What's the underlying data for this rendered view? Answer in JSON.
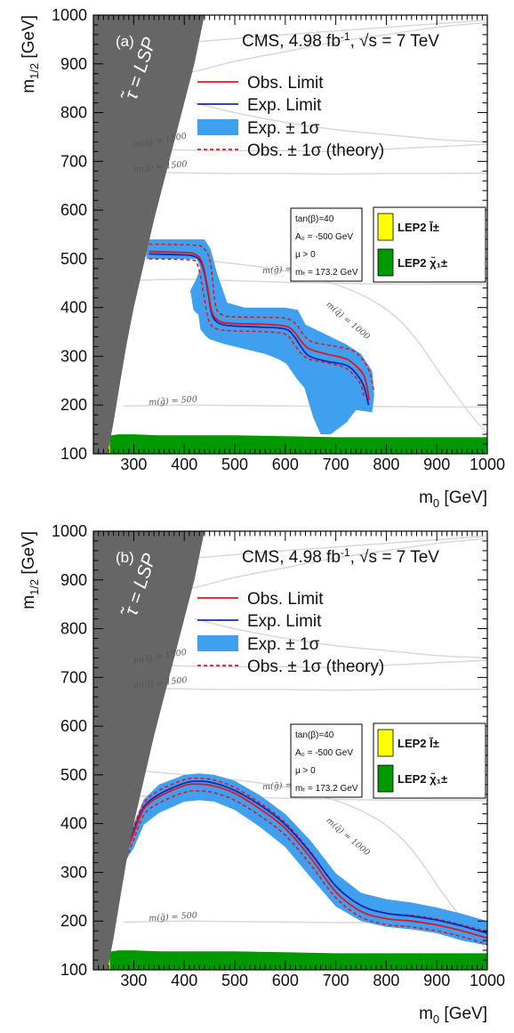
{
  "chart_data": [
    {
      "type": "line",
      "panel_label": "(a)",
      "ylabel_main": "m",
      "ylabel_sub": "1/2",
      "ylabel_unit": "[GeV]",
      "xlabel_main": "m",
      "xlabel_sub": "0",
      "xlabel_unit": "[GeV]",
      "xlim": [
        220,
        1000
      ],
      "ylim": [
        100,
        1000
      ],
      "x_ticks": [
        "300",
        "400",
        "500",
        "600",
        "700",
        "800",
        "900",
        "1000"
      ],
      "y_ticks": [
        "100",
        "200",
        "300",
        "400",
        "500",
        "600",
        "700",
        "800",
        "900",
        "1000"
      ],
      "experiment": "CMS, 4.98 fb",
      "lumi_sup": "-1",
      "energy_sqrt": "√s",
      "energy": "= 7 TeV",
      "excluded_region_label": "τ̃ = LSP",
      "legend": [
        "Obs. Limit",
        "Exp. Limit",
        "Exp. ± 1σ",
        "Obs. ± 1σ (theory)"
      ],
      "params": [
        "tan(β)=40",
        "A₀ = -500 GeV",
        "μ > 0",
        "mₜ = 173.2 GeV"
      ],
      "lep_labels": [
        "LEP2 l̃±",
        "LEP2 χ̃₁±"
      ],
      "contour_labels": [
        "m(q̃) = 1500",
        "m(g̃) = 1500",
        "m(g̃) = 1000",
        "m(q̃) = 1000",
        "m(g̃) = 500"
      ],
      "colors": {
        "obs": "#e8141c",
        "exp": "#1428b4",
        "band": "#3fa0f0",
        "stau": "#666666",
        "lep_slepton": "#ffff00",
        "lep_chargino": "#009900",
        "contour": "#d8d8d8"
      },
      "stau_boundary": [
        [
          220,
          1000
        ],
        [
          220,
          100
        ],
        [
          248,
          100
        ],
        [
          260,
          165
        ],
        [
          272,
          240
        ],
        [
          285,
          320
        ],
        [
          300,
          400
        ],
        [
          320,
          490
        ],
        [
          340,
          580
        ],
        [
          360,
          660
        ],
        [
          380,
          740
        ],
        [
          400,
          820
        ],
        [
          420,
          900
        ],
        [
          440,
          1000
        ]
      ],
      "lep_slepton": [
        [
          220,
          100
        ],
        [
          220,
          115
        ],
        [
          228,
          130
        ],
        [
          238,
          160
        ],
        [
          245,
          190
        ],
        [
          250,
          200
        ],
        [
          253,
          100
        ]
      ],
      "lep_chargino": [
        [
          232,
          100
        ],
        [
          235,
          128
        ],
        [
          250,
          137
        ],
        [
          270,
          140
        ],
        [
          300,
          140
        ],
        [
          350,
          138
        ],
        [
          500,
          138
        ],
        [
          600,
          136
        ],
        [
          700,
          134
        ],
        [
          800,
          134
        ],
        [
          1000,
          134
        ],
        [
          1000,
          100
        ]
      ],
      "obs_limit": {
        "x": [
          330,
          400,
          420,
          432,
          440,
          448,
          455,
          470,
          500,
          550,
          600,
          618,
          632,
          648,
          680,
          720,
          740,
          755,
          762,
          766
        ],
        "y": [
          515,
          513,
          510,
          500,
          475,
          430,
          390,
          372,
          367,
          366,
          362,
          350,
          330,
          315,
          305,
          295,
          280,
          262,
          235,
          210
        ]
      },
      "exp_limit": {
        "x": [
          330,
          400,
          420,
          432,
          440,
          448,
          455,
          470,
          500,
          550,
          600,
          618,
          632,
          648,
          680,
          720,
          740,
          755,
          765
        ],
        "y": [
          510,
          508,
          505,
          495,
          470,
          425,
          385,
          367,
          362,
          360,
          356,
          340,
          318,
          300,
          290,
          282,
          265,
          240,
          200
        ]
      },
      "obs_theory_up": {
        "x": [
          330,
          420,
          440,
          452,
          462,
          475,
          500,
          550,
          600,
          620,
          636,
          652,
          690,
          730,
          752,
          768,
          775
        ],
        "y": [
          530,
          528,
          520,
          490,
          405,
          385,
          381,
          380,
          378,
          367,
          345,
          330,
          322,
          313,
          295,
          265,
          230
        ]
      },
      "obs_theory_down": {
        "x": [
          330,
          410,
          424,
          432,
          440,
          448,
          462,
          500,
          550,
          598,
          614,
          628,
          645,
          675,
          715,
          735,
          750,
          756
        ],
        "y": [
          500,
          498,
          492,
          465,
          418,
          375,
          357,
          352,
          351,
          346,
          330,
          310,
          295,
          288,
          278,
          262,
          240,
          215
        ]
      },
      "exp_band": {
        "x": [
          325,
          440,
          452,
          465,
          485,
          520,
          600,
          625,
          640,
          680,
          720,
          750,
          772,
          776,
          772,
          740,
          722,
          690,
          670,
          655,
          638,
          622,
          612,
          602,
          585,
          560,
          520,
          480,
          450,
          442,
          432,
          428,
          418,
          412,
          422,
          432,
          425,
          410,
          325
        ],
        "y": [
          540,
          540,
          520,
          470,
          410,
          400,
          400,
          395,
          365,
          345,
          325,
          305,
          270,
          220,
          185,
          190,
          165,
          140,
          140,
          175,
          235,
          255,
          270,
          285,
          295,
          305,
          315,
          325,
          335,
          342,
          355,
          385,
          395,
          435,
          455,
          480,
          500,
          500,
          500
        ]
      },
      "contours": [
        {
          "x": [
            300,
            400,
            500,
            600,
            700,
            800,
            900,
            1000
          ],
          "y": [
            870,
            880,
            905,
            925,
            945,
            960,
            975,
            985
          ]
        },
        {
          "x": [
            420,
            600,
            800,
            1000
          ],
          "y": [
            945,
            960,
            975,
            990
          ]
        },
        {
          "x": [
            300,
            420,
            500,
            600,
            700,
            800,
            900,
            1000
          ],
          "y": [
            725,
            723,
            722,
            722,
            720,
            725,
            730,
            735
          ]
        },
        {
          "x": [
            300,
            420,
            500,
            600,
            700,
            800,
            900,
            1000
          ],
          "y": [
            678,
            676,
            675,
            675,
            674,
            675,
            675,
            676
          ]
        },
        {
          "x": [
            280,
            400,
            500,
            600,
            700,
            800,
            900,
            1000
          ],
          "y": [
            455,
            458,
            455,
            452,
            450,
            448,
            448,
            448
          ]
        },
        {
          "x": [
            300,
            400,
            500,
            600,
            660,
            720,
            780,
            830,
            870,
            910,
            960,
            1000
          ],
          "y": [
            510,
            500,
            490,
            475,
            460,
            440,
            410,
            370,
            320,
            260,
            190,
            140
          ]
        },
        {
          "x": [
            280,
            400,
            500,
            600,
            700,
            800,
            900,
            1000
          ],
          "y": [
            198,
            200,
            199,
            198,
            197,
            197,
            196,
            196
          ]
        },
        {
          "x": [
            420,
            500,
            600,
            700,
            800,
            900,
            1000
          ],
          "y": [
            820,
            800,
            780,
            765,
            755,
            745,
            740
          ]
        }
      ]
    },
    {
      "type": "line",
      "panel_label": "(b)",
      "ylabel_main": "m",
      "ylabel_sub": "1/2",
      "ylabel_unit": "[GeV]",
      "xlabel_main": "m",
      "xlabel_sub": "0",
      "xlabel_unit": "[GeV]",
      "xlim": [
        220,
        1000
      ],
      "ylim": [
        100,
        1000
      ],
      "x_ticks": [
        "300",
        "400",
        "500",
        "600",
        "700",
        "800",
        "900",
        "1000"
      ],
      "y_ticks": [
        "100",
        "200",
        "300",
        "400",
        "500",
        "600",
        "700",
        "800",
        "900",
        "1000"
      ],
      "experiment": "CMS, 4.98 fb",
      "lumi_sup": "-1",
      "energy_sqrt": "√s",
      "energy": "= 7 TeV",
      "excluded_region_label": "τ̃ = LSP",
      "legend": [
        "Obs. Limit",
        "Exp. Limit",
        "Exp. ± 1σ",
        "Obs. ± 1σ (theory)"
      ],
      "params": [
        "tan(β)=40",
        "A₀ = -500 GeV",
        "μ > 0",
        "mₜ = 173.2 GeV"
      ],
      "lep_labels": [
        "LEP2 l̃±",
        "LEP2 χ̃₁±"
      ],
      "contour_labels": [
        "m(q̃) = 1500",
        "m(g̃) = 1500",
        "m(g̃) = 1000",
        "m(q̃) = 1000",
        "m(g̃) = 500"
      ],
      "colors": {
        "obs": "#e8141c",
        "exp": "#1428b4",
        "band": "#3fa0f0",
        "stau": "#666666",
        "lep_slepton": "#ffff00",
        "lep_chargino": "#009900",
        "contour": "#d8d8d8"
      },
      "stau_boundary": [
        [
          220,
          1000
        ],
        [
          220,
          100
        ],
        [
          248,
          100
        ],
        [
          260,
          165
        ],
        [
          272,
          240
        ],
        [
          285,
          320
        ],
        [
          300,
          400
        ],
        [
          320,
          490
        ],
        [
          340,
          580
        ],
        [
          360,
          660
        ],
        [
          380,
          740
        ],
        [
          400,
          820
        ],
        [
          420,
          900
        ],
        [
          440,
          1000
        ]
      ],
      "lep_slepton": [
        [
          220,
          100
        ],
        [
          220,
          115
        ],
        [
          228,
          130
        ],
        [
          238,
          160
        ],
        [
          245,
          190
        ],
        [
          250,
          200
        ],
        [
          253,
          100
        ]
      ],
      "lep_chargino": [
        [
          232,
          100
        ],
        [
          235,
          128
        ],
        [
          250,
          137
        ],
        [
          270,
          140
        ],
        [
          300,
          140
        ],
        [
          350,
          138
        ],
        [
          500,
          138
        ],
        [
          600,
          136
        ],
        [
          700,
          134
        ],
        [
          800,
          134
        ],
        [
          1000,
          134
        ],
        [
          1000,
          100
        ]
      ],
      "obs_limit": {
        "x": [
          285,
          300,
          320,
          350,
          400,
          430,
          460,
          500,
          550,
          600,
          650,
          700,
          750,
          800,
          850,
          900,
          950,
          1000
        ],
        "y": [
          340,
          380,
          430,
          455,
          478,
          481,
          477,
          462,
          430,
          390,
          330,
          260,
          220,
          205,
          200,
          192,
          180,
          165
        ]
      },
      "exp_limit": {
        "x": [
          285,
          300,
          320,
          350,
          400,
          430,
          460,
          500,
          550,
          600,
          650,
          700,
          750,
          800,
          850,
          900,
          950,
          1000
        ],
        "y": [
          345,
          385,
          434,
          460,
          483,
          487,
          483,
          468,
          438,
          398,
          340,
          272,
          232,
          216,
          210,
          202,
          190,
          175
        ]
      },
      "obs_theory_up": {
        "x": [
          285,
          300,
          320,
          350,
          400,
          430,
          460,
          500,
          550,
          600,
          650,
          700,
          750,
          800,
          850,
          900,
          950,
          1000
        ],
        "y": [
          350,
          393,
          442,
          468,
          490,
          493,
          489,
          474,
          442,
          402,
          342,
          272,
          232,
          216,
          212,
          204,
          192,
          178
        ]
      },
      "obs_theory_down": {
        "x": [
          285,
          300,
          320,
          350,
          400,
          430,
          460,
          500,
          550,
          600,
          650,
          700,
          750,
          800,
          850,
          900,
          950,
          1000
        ],
        "y": [
          328,
          367,
          418,
          442,
          464,
          467,
          463,
          448,
          416,
          376,
          316,
          248,
          208,
          193,
          188,
          180,
          168,
          152
        ]
      },
      "exp_band": {
        "x": [
          278,
          300,
          320,
          350,
          400,
          430,
          460,
          500,
          550,
          600,
          650,
          700,
          750,
          800,
          850,
          900,
          950,
          1000,
          1000,
          950,
          900,
          850,
          800,
          750,
          700,
          650,
          600,
          550,
          500,
          460,
          430,
          400,
          350,
          320,
          300,
          278
        ],
        "y": [
          350,
          400,
          450,
          480,
          500,
          503,
          500,
          488,
          458,
          420,
          365,
          298,
          258,
          245,
          238,
          228,
          215,
          200,
          150,
          160,
          175,
          183,
          188,
          200,
          230,
          290,
          352,
          393,
          428,
          445,
          448,
          445,
          422,
          398,
          350,
          315
        ]
      },
      "contours": [
        {
          "x": [
            300,
            400,
            500,
            600,
            700,
            800,
            900,
            1000
          ],
          "y": [
            870,
            880,
            905,
            925,
            945,
            960,
            975,
            985
          ]
        },
        {
          "x": [
            420,
            600,
            800,
            1000
          ],
          "y": [
            945,
            960,
            975,
            990
          ]
        },
        {
          "x": [
            300,
            420,
            500,
            600,
            700,
            800,
            900,
            1000
          ],
          "y": [
            725,
            723,
            722,
            722,
            720,
            725,
            730,
            735
          ]
        },
        {
          "x": [
            300,
            420,
            500,
            600,
            700,
            800,
            900,
            1000
          ],
          "y": [
            678,
            676,
            675,
            675,
            674,
            675,
            675,
            676
          ]
        },
        {
          "x": [
            280,
            400,
            500,
            600,
            700,
            800,
            900,
            1000
          ],
          "y": [
            455,
            458,
            455,
            452,
            450,
            448,
            448,
            448
          ]
        },
        {
          "x": [
            300,
            400,
            500,
            600,
            660,
            720,
            780,
            830,
            870,
            910,
            960,
            1000
          ],
          "y": [
            510,
            500,
            490,
            475,
            460,
            440,
            410,
            370,
            320,
            260,
            190,
            140
          ]
        },
        {
          "x": [
            280,
            400,
            500,
            600,
            700,
            800,
            900,
            1000
          ],
          "y": [
            198,
            200,
            199,
            198,
            197,
            197,
            196,
            196
          ]
        },
        {
          "x": [
            420,
            500,
            600,
            700,
            800,
            900,
            1000
          ],
          "y": [
            820,
            800,
            780,
            765,
            755,
            745,
            740
          ]
        }
      ]
    }
  ]
}
